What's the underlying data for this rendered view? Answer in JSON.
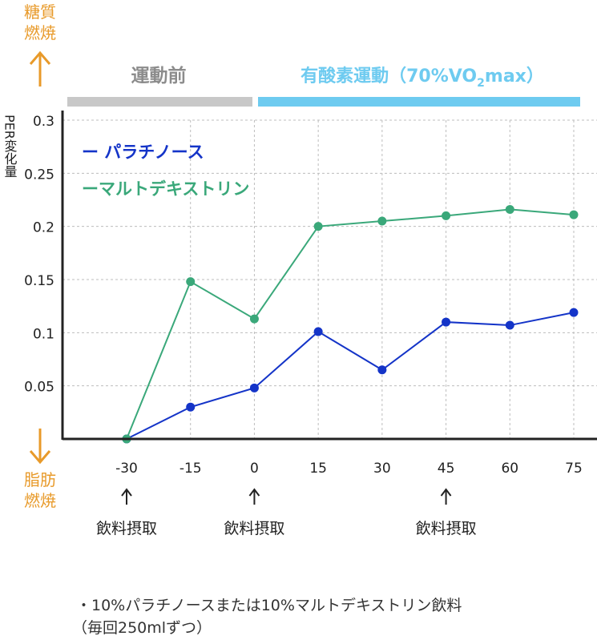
{
  "side_labels": {
    "top": [
      "糖質",
      "燃焼"
    ],
    "bottom": [
      "脂肪",
      "燃焼"
    ],
    "color": "#e89a2a"
  },
  "phases": {
    "pre": {
      "label": "運動前",
      "color": "#c8c8c8",
      "text_color": "#8c8c8c"
    },
    "exercise": {
      "label_before": "有酸素運動（70%VO",
      "subscript": "2",
      "label_after": "max）",
      "color": "#6ecbf0"
    }
  },
  "intake_markers": [
    {
      "x": -30,
      "arrow": "↑",
      "label": "飲料摂取"
    },
    {
      "x": 0,
      "arrow": "↑",
      "label": "飲料摂取"
    },
    {
      "x": 45,
      "arrow": "↑",
      "label": "飲料摂取"
    }
  ],
  "footnote": [
    "・10%パラチノースまたは10%マルトデキストリン飲料",
    "（毎回250mlずつ）"
  ],
  "chart_data": {
    "type": "line",
    "ylabel": "PER変化量",
    "xlabel": "",
    "x": [
      -30,
      -15,
      0,
      15,
      30,
      45,
      60,
      75
    ],
    "x_tick_labels": [
      "-30",
      "-15",
      "0",
      "15",
      "30",
      "45",
      "60",
      "75"
    ],
    "ylim": [
      0,
      0.3
    ],
    "y_ticks": [
      0.05,
      0.1,
      0.15,
      0.2,
      0.25,
      0.3
    ],
    "y_tick_labels": [
      "0.05",
      "0.1",
      "0.15",
      "0.2",
      "0.25",
      "0.3"
    ],
    "grid": true,
    "legend_position": "top-left",
    "series": [
      {
        "name": "パラチノース",
        "legend_text": "ー パラチノース",
        "color": "#1434c8",
        "values": [
          0,
          0.03,
          0.048,
          0.101,
          0.065,
          0.11,
          0.107,
          0.119
        ]
      },
      {
        "name": "マルトデキストリン",
        "legend_text": "ーマルトデキストリン",
        "color": "#3aa87a",
        "values": [
          0,
          0.148,
          0.113,
          0.2,
          0.205,
          0.21,
          0.216,
          0.211
        ]
      }
    ]
  }
}
